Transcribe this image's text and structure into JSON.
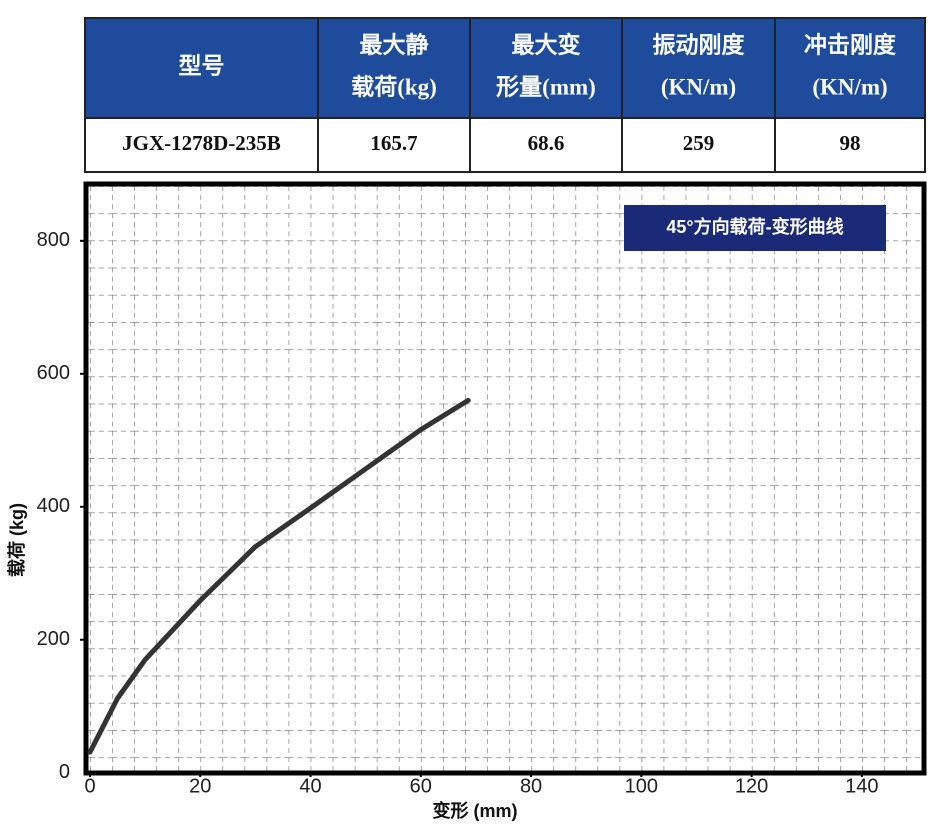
{
  "table": {
    "header": [
      [
        "型号"
      ],
      [
        "最大静",
        "载荷(kg)"
      ],
      [
        "最大变",
        "形量(mm)"
      ],
      [
        "振动刚度",
        "(KN/m)"
      ],
      [
        "冲击刚度",
        "(KN/m)"
      ]
    ],
    "rows": [
      [
        "JGX-1278D-235B",
        "165.7",
        "68.6",
        "259",
        "98"
      ]
    ]
  },
  "chart_data": {
    "type": "line",
    "title": "45°方向载荷-变形曲线",
    "x_label": "变形 (mm)",
    "y_label": "载荷 (kg)",
    "x": [
      0,
      5,
      10,
      20,
      30,
      40,
      50,
      60,
      68.6
    ],
    "values": [
      31,
      112,
      170,
      259,
      340,
      398,
      457,
      516,
      560
    ],
    "color": "#333333",
    "xlim": [
      0,
      150
    ],
    "xticks": [
      0,
      20,
      40,
      60,
      80,
      100,
      120,
      140
    ],
    "ylim": [
      -20,
      884
    ],
    "yticks": [
      0,
      200,
      400,
      600,
      800
    ],
    "grid": true
  }
}
